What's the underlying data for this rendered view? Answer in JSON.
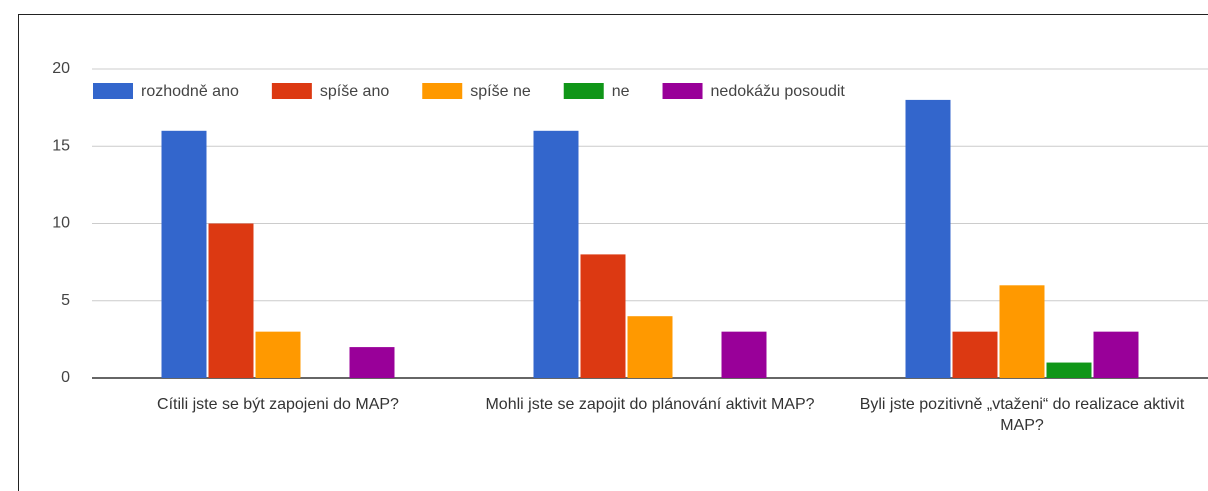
{
  "chart_data": {
    "type": "bar",
    "categories": [
      "Cítili jste se být zapojeni do MAP?",
      "Mohli jste se zapojit do plánování aktivit MAP?",
      "Byli jste pozitivně „vtaženi“ do realizace aktivit MAP?"
    ],
    "series": [
      {
        "name": "rozhodně ano",
        "color": "#3366cc",
        "values": [
          16,
          16,
          18
        ]
      },
      {
        "name": "spíše ano",
        "color": "#dc3912",
        "values": [
          10,
          8,
          3
        ]
      },
      {
        "name": "spíše ne",
        "color": "#ff9900",
        "values": [
          3,
          4,
          6
        ]
      },
      {
        "name": "ne",
        "color": "#109618",
        "values": [
          0,
          0,
          1
        ]
      },
      {
        "name": "nedokážu posoudit",
        "color": "#990099",
        "values": [
          2,
          3,
          3
        ]
      }
    ],
    "ylim": [
      0,
      20
    ],
    "yticks": [
      0,
      5,
      10,
      15,
      20
    ],
    "grid": true,
    "legend": "top"
  }
}
